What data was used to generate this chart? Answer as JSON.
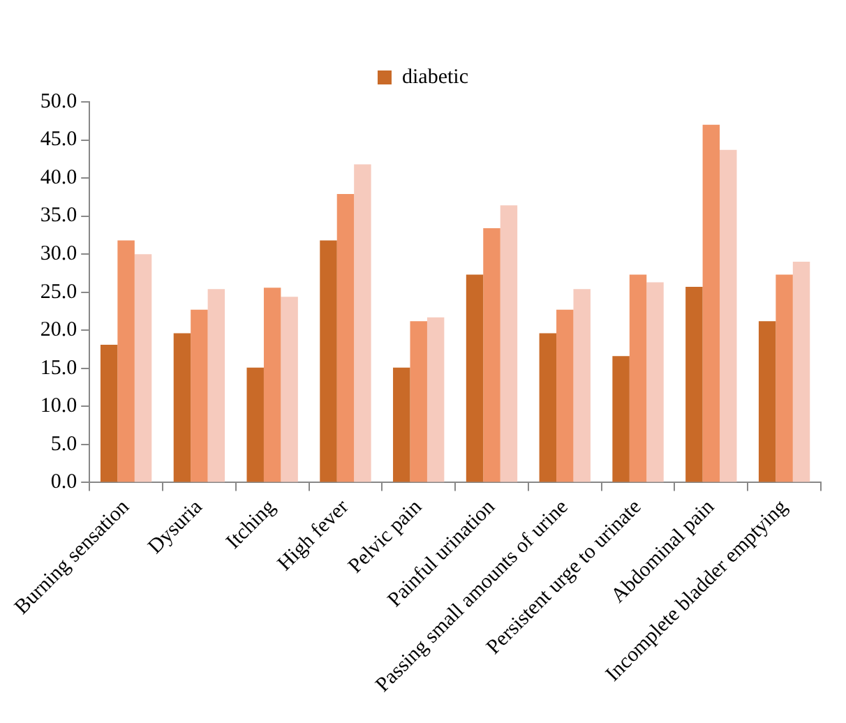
{
  "chart_data": {
    "type": "bar",
    "categories": [
      "Burning sensation",
      "Dysuria",
      "Itching",
      "High fever",
      "Pelvic pain",
      "Painful urination",
      "Passing small amounts of urine",
      "Persistent urge to urinate",
      "Abdominal pain",
      "Incomplete bladder emptying"
    ],
    "series": [
      {
        "name": "diabetic",
        "color": "#c96a28",
        "values": [
          18.1,
          19.6,
          15.1,
          31.8,
          15.1,
          27.3,
          19.6,
          16.6,
          25.7,
          21.2
        ]
      },
      {
        "color": "#f09366",
        "values": [
          31.8,
          22.7,
          25.6,
          37.9,
          21.2,
          33.4,
          22.7,
          27.3,
          47.0,
          27.3
        ]
      },
      {
        "color": "#f6cabd",
        "values": [
          30.0,
          25.4,
          24.4,
          41.8,
          21.7,
          36.4,
          25.4,
          26.3,
          43.7,
          29.0
        ]
      }
    ],
    "ylim": [
      0,
      50
    ],
    "yticks": [
      {
        "value": 0,
        "label": "0.0"
      },
      {
        "value": 5,
        "label": "5.0"
      },
      {
        "value": 10,
        "label": "10.0"
      },
      {
        "value": 15,
        "label": "15.0"
      },
      {
        "value": 20,
        "label": "20.0"
      },
      {
        "value": 25,
        "label": "25.0"
      },
      {
        "value": 30,
        "label": "30.0"
      },
      {
        "value": 35,
        "label": "35.0"
      },
      {
        "value": 40,
        "label": "40.0"
      },
      {
        "value": 45,
        "label": "45.0"
      },
      {
        "value": 50,
        "label": "50.0"
      }
    ],
    "legend": "top"
  }
}
